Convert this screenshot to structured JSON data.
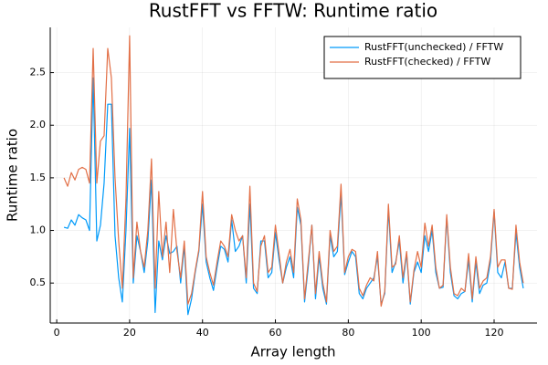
{
  "chart_data": {
    "type": "line",
    "title": "RustFFT vs FFTW: Runtime ratio",
    "xlabel": "Array length",
    "ylabel": "Runtime ratio",
    "x": [
      2,
      3,
      4,
      5,
      6,
      7,
      8,
      9,
      10,
      11,
      12,
      13,
      14,
      15,
      16,
      17,
      18,
      19,
      20,
      21,
      22,
      23,
      24,
      25,
      26,
      27,
      28,
      29,
      30,
      31,
      32,
      33,
      34,
      35,
      36,
      37,
      38,
      39,
      40,
      41,
      42,
      43,
      44,
      45,
      46,
      47,
      48,
      49,
      50,
      51,
      52,
      53,
      54,
      55,
      56,
      57,
      58,
      59,
      60,
      61,
      62,
      63,
      64,
      65,
      66,
      67,
      68,
      69,
      70,
      71,
      72,
      73,
      74,
      75,
      76,
      77,
      78,
      79,
      80,
      81,
      82,
      83,
      84,
      85,
      86,
      87,
      88,
      89,
      90,
      91,
      92,
      93,
      94,
      95,
      96,
      97,
      98,
      99,
      100,
      101,
      102,
      103,
      104,
      105,
      106,
      107,
      108,
      109,
      110,
      111,
      112,
      113,
      114,
      115,
      116,
      117,
      118,
      119,
      120,
      121,
      122,
      123,
      124,
      125,
      126,
      127,
      128
    ],
    "series": [
      {
        "name": "RustFFT(unchecked) / FFTW",
        "color": "#009af9",
        "values": [
          1.03,
          1.02,
          1.1,
          1.05,
          1.15,
          1.12,
          1.1,
          1.0,
          2.45,
          0.9,
          1.05,
          1.45,
          2.2,
          2.2,
          0.95,
          0.55,
          0.32,
          1.0,
          1.97,
          0.5,
          0.95,
          0.8,
          0.6,
          0.9,
          1.48,
          0.22,
          0.9,
          0.72,
          0.95,
          0.78,
          0.8,
          0.85,
          0.5,
          0.85,
          0.2,
          0.35,
          0.6,
          0.8,
          1.25,
          0.7,
          0.55,
          0.43,
          0.65,
          0.85,
          0.82,
          0.7,
          1.1,
          0.8,
          0.85,
          0.95,
          0.5,
          1.25,
          0.45,
          0.4,
          0.9,
          0.9,
          0.55,
          0.6,
          0.98,
          0.72,
          0.5,
          0.65,
          0.75,
          0.55,
          1.22,
          1.05,
          0.32,
          0.65,
          1.05,
          0.35,
          0.75,
          0.45,
          0.3,
          0.95,
          0.75,
          0.8,
          1.35,
          0.58,
          0.7,
          0.8,
          0.75,
          0.4,
          0.35,
          0.45,
          0.5,
          0.55,
          0.75,
          0.3,
          0.4,
          1.2,
          0.6,
          0.7,
          0.9,
          0.5,
          0.78,
          0.3,
          0.6,
          0.7,
          0.6,
          0.95,
          0.8,
          1.0,
          0.6,
          0.45,
          0.46,
          1.12,
          0.6,
          0.38,
          0.35,
          0.4,
          0.42,
          0.72,
          0.32,
          0.7,
          0.4,
          0.48,
          0.5,
          0.7,
          1.18,
          0.6,
          0.55,
          0.7,
          0.45,
          0.45,
          0.98,
          0.65,
          0.45
        ]
      },
      {
        "name": "RustFFT(checked) / FFTW",
        "color": "#e26f46",
        "values": [
          1.5,
          1.42,
          1.55,
          1.48,
          1.58,
          1.6,
          1.58,
          1.45,
          2.73,
          1.45,
          1.85,
          1.9,
          2.73,
          2.45,
          1.5,
          0.9,
          0.45,
          1.3,
          2.85,
          0.55,
          1.08,
          0.8,
          0.65,
          1.0,
          1.68,
          0.45,
          1.37,
          0.75,
          1.08,
          0.6,
          1.2,
          0.8,
          0.55,
          0.9,
          0.3,
          0.4,
          0.62,
          0.82,
          1.37,
          0.75,
          0.6,
          0.48,
          0.7,
          0.9,
          0.85,
          0.75,
          1.15,
          1.0,
          0.9,
          0.95,
          0.55,
          1.42,
          0.5,
          0.42,
          0.85,
          0.95,
          0.6,
          0.65,
          1.05,
          0.78,
          0.5,
          0.7,
          0.82,
          0.6,
          1.3,
          1.1,
          0.35,
          0.7,
          1.05,
          0.4,
          0.8,
          0.5,
          0.32,
          1.0,
          0.8,
          0.85,
          1.44,
          0.6,
          0.75,
          0.82,
          0.8,
          0.45,
          0.38,
          0.48,
          0.55,
          0.52,
          0.8,
          0.28,
          0.42,
          1.25,
          0.65,
          0.68,
          0.95,
          0.55,
          0.8,
          0.32,
          0.62,
          0.8,
          0.65,
          1.07,
          0.85,
          1.05,
          0.65,
          0.45,
          0.48,
          1.15,
          0.65,
          0.4,
          0.38,
          0.45,
          0.42,
          0.78,
          0.35,
          0.75,
          0.45,
          0.52,
          0.55,
          0.75,
          1.2,
          0.65,
          0.72,
          0.72,
          0.45,
          0.44,
          1.05,
          0.7,
          0.5
        ]
      }
    ],
    "xlim": [
      -1.78,
      131.78
    ],
    "xticks": [
      0,
      20,
      40,
      60,
      80,
      100,
      120
    ],
    "ylim": [
      0.12,
      2.93
    ],
    "yticks": [
      0.5,
      {
        "value": 1,
        "label": "1.0"
      },
      1.5,
      {
        "value": 2,
        "label": "2.0"
      },
      2.5
    ],
    "grid": true,
    "legend": "top-right"
  }
}
